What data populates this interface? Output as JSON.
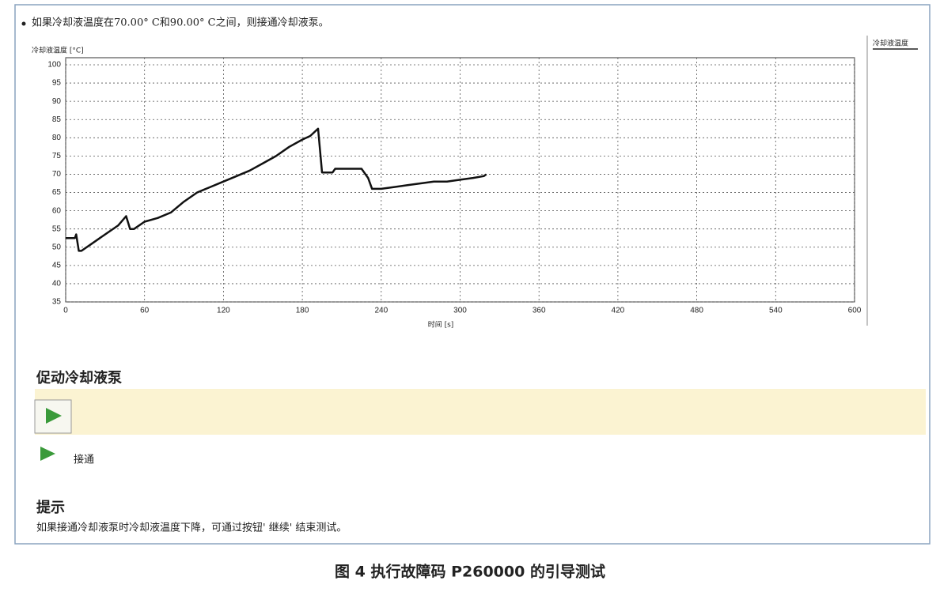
{
  "instruction": "如果冷却液温度在70.00° C和90.00° C之间，则接通冷却液泵。",
  "chart_data": {
    "type": "line",
    "y_label": "冷却液温度 [°C]",
    "x_label": "时间 [s]",
    "x": [
      0,
      7,
      8,
      10,
      12,
      20,
      30,
      40,
      46,
      49,
      52,
      60,
      70,
      80,
      90,
      100,
      110,
      120,
      130,
      140,
      150,
      160,
      170,
      180,
      186,
      192,
      195,
      203,
      205,
      225,
      230,
      233,
      240,
      250,
      260,
      270,
      280,
      290,
      300,
      310,
      318,
      320
    ],
    "series": [
      {
        "name": "冷却液温度",
        "color": "#111111",
        "values": [
          52.5,
          52.5,
          53.5,
          49,
          49,
          51,
          53.5,
          56,
          58.5,
          55,
          55,
          57,
          58,
          59.5,
          62.5,
          65,
          66.5,
          68,
          69.5,
          71,
          73,
          75,
          77.5,
          79.5,
          80.5,
          82.5,
          70.5,
          70.5,
          71.5,
          71.5,
          69,
          66,
          66,
          66.5,
          67,
          67.5,
          68,
          68,
          68.5,
          69,
          69.5,
          70
        ]
      }
    ],
    "xlim": [
      0,
      600
    ],
    "ylim": [
      35,
      100
    ],
    "xticks": [
      0,
      60,
      120,
      180,
      240,
      300,
      360,
      420,
      480,
      540,
      600
    ],
    "yticks": [
      35,
      40,
      45,
      50,
      55,
      60,
      65,
      70,
      75,
      80,
      85,
      90,
      95,
      100
    ],
    "grid": true
  },
  "section_title": "促动冷却液泵",
  "status_label": "接通",
  "hint_title": "提示",
  "hint_text": "如果接通冷却液泵时冷却液温度下降，可通过按钮' 继续' 结束测试。",
  "caption": "图 4  执行故障码 P260000 的引导测试"
}
